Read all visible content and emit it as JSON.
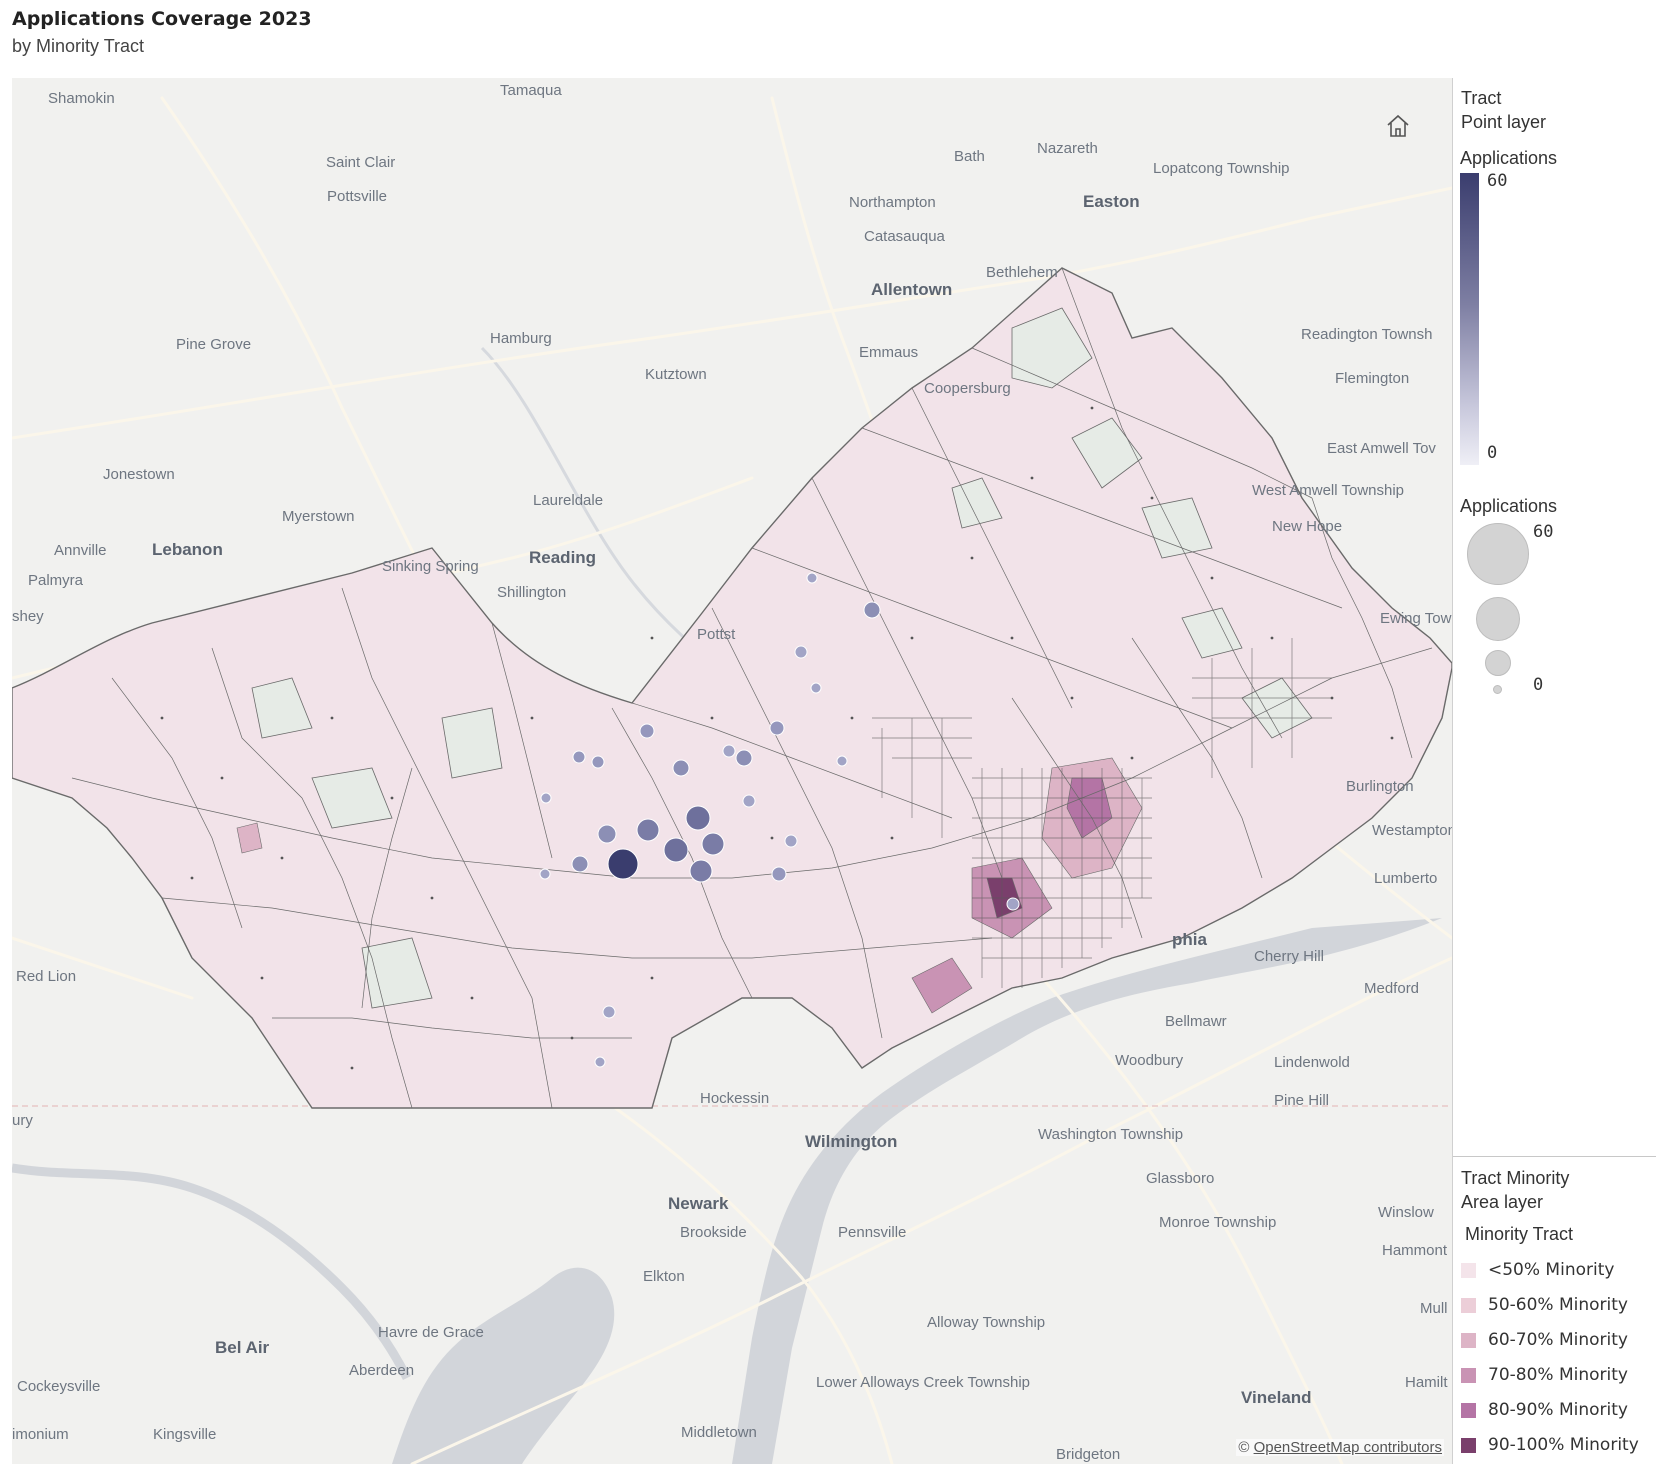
{
  "header": {
    "title": "Applications Coverage 2023",
    "subtitle": "by Minority Tract"
  },
  "map": {
    "place_labels": {
      "shamokin": "Shamokin",
      "tamaqua": "Tamaqua",
      "saint_clair": "Saint Clair",
      "pottsville": "Pottsville",
      "bath": "Bath",
      "nazareth": "Nazareth",
      "lopatcong": "Lopatcong Township",
      "easton": "Easton",
      "northampton": "Northampton",
      "catasauqua": "Catasauqua",
      "allentown": "Allentown",
      "bethlehem": "Bethlehem",
      "pine_grove": "Pine Grove",
      "hamburg": "Hamburg",
      "emmaus": "Emmaus",
      "readington": "Readington Townsh",
      "kutztown": "Kutztown",
      "flemington": "Flemington",
      "coopersburg": "Coopersburg",
      "jonestown": "Jonestown",
      "east_amwell": "East Amwell Tov",
      "laureldale": "Laureldale",
      "myerstown": "Myerstown",
      "west_amwell": "West Amwell Township",
      "annville": "Annville",
      "lebanon": "Lebanon",
      "reading": "Reading",
      "new_hope": "New Hope",
      "palmyra": "Palmyra",
      "sinking_spring": "Sinking Spring",
      "shillington": "Shillington",
      "hershey": "shey",
      "ewing": "Ewing Tow",
      "pottstown": "Pottst",
      "burlington": "Burlington",
      "westampton": "Westampton",
      "lumberton": "Lumberto",
      "philadelphia": "phia",
      "cherry_hill": "Cherry Hill",
      "red_lion": "Red Lion",
      "medford": "Medford",
      "bellmawr": "Bellmawr",
      "woodbury": "Woodbury",
      "lindenwold": "Lindenwold",
      "hockessin": "Hockessin",
      "pine_hill": "Pine Hill",
      "york_city": "ury",
      "washington_twp": "Washington Township",
      "wilmington": "Wilmington",
      "glassboro": "Glassboro",
      "newark": "Newark",
      "winslow": "Winslow",
      "brookside": "Brookside",
      "pennsville": "Pennsville",
      "monroe": "Monroe Township",
      "hammonton": "Hammont",
      "elkton": "Elkton",
      "alloway": "Alloway Township",
      "mullica": "Mull",
      "bel_air": "Bel Air",
      "havre_de_grace": "Havre de Grace",
      "aberdeen": "Aberdeen",
      "lower_alloways": "Lower Alloways Creek Township",
      "hamilton": "Hamilt",
      "vineland": "Vineland",
      "cockeysville": "Cockeysville",
      "timonium": "imonium",
      "kingsville": "Kingsville",
      "middletown": "Middletown",
      "bridgeton": "Bridgeton"
    },
    "attribution_prefix": "©",
    "attribution_link": "OpenStreetMap contributors",
    "colors": {
      "basemap": "#f1f1ef",
      "tract_fill_lt50": "#f2e3e9",
      "tract_fill_green": "#e6ebe6",
      "tract_fill_high": "#c98fb6",
      "tract_border": "#6a6a6a",
      "point_fill": "#8c8fb5",
      "point_fill_max": "#3a3d6e",
      "water": "#c8ccd2"
    }
  },
  "legend": {
    "point_layer": {
      "name": "Tract",
      "type": "Point layer",
      "color_title": "Applications",
      "color_max": "60",
      "color_min": "0",
      "size_title": "Applications",
      "size_max": "60",
      "size_min": "0"
    },
    "area_layer": {
      "name": "Tract Minority",
      "type": "Area layer",
      "title": "Minority Tract",
      "items": [
        {
          "label": "<50% Minority",
          "color": "#f4e4ea"
        },
        {
          "label": "50-60% Minority",
          "color": "#ecced8"
        },
        {
          "label": "60-70% Minority",
          "color": "#ddb4c6"
        },
        {
          "label": "70-80% Minority",
          "color": "#c993b4"
        },
        {
          "label": "80-90% Minority",
          "color": "#b474a5"
        },
        {
          "label": "90-100% Minority",
          "color": "#7a3f6c"
        }
      ]
    }
  }
}
